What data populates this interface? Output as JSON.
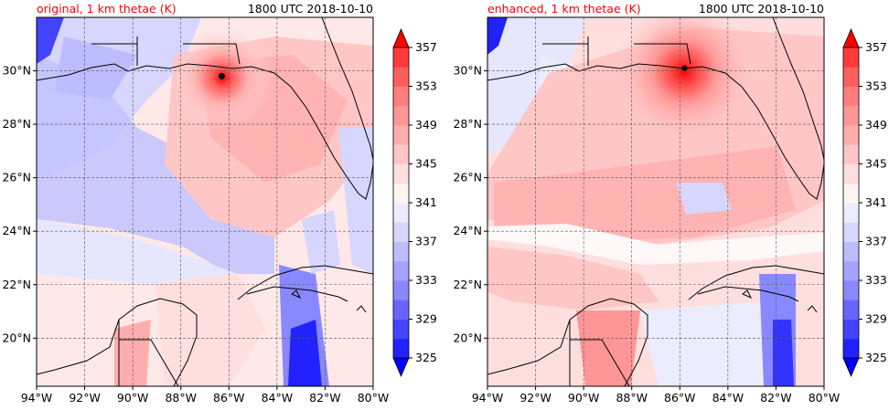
{
  "panels": [
    {
      "title": "original, 1 km thetae (K)",
      "time": "1800 UTC 2018-10-10",
      "storm_center": {
        "lon": -86.3,
        "lat": 29.8
      }
    },
    {
      "title": "enhanced, 1 km thetae (K)",
      "time": "1800 UTC 2018-10-10",
      "storm_center": {
        "lon": -85.8,
        "lat": 30.1
      }
    }
  ],
  "map": {
    "lon_range": [
      -94,
      -80
    ],
    "lat_range": [
      18.2,
      32
    ]
  },
  "lon_ticks": [
    {
      "value": -94,
      "label": "94°W"
    },
    {
      "value": -92,
      "label": "92°W"
    },
    {
      "value": -90,
      "label": "90°W"
    },
    {
      "value": -88,
      "label": "88°W"
    },
    {
      "value": -86,
      "label": "86°W"
    },
    {
      "value": -84,
      "label": "84°W"
    },
    {
      "value": -82,
      "label": "82°W"
    },
    {
      "value": -80,
      "label": "80°W"
    }
  ],
  "lat_ticks": [
    {
      "value": 20,
      "label": "20°N"
    },
    {
      "value": 22,
      "label": "22°N"
    },
    {
      "value": 24,
      "label": "24°N"
    },
    {
      "value": 26,
      "label": "26°N"
    },
    {
      "value": 28,
      "label": "28°N"
    },
    {
      "value": 30,
      "label": "30°N"
    }
  ],
  "colorbar": {
    "levels": [
      325,
      327,
      329,
      331,
      333,
      335,
      337,
      339,
      341,
      343,
      345,
      347,
      349,
      351,
      353,
      355,
      357
    ],
    "tick_labels": [
      "325",
      "329",
      "333",
      "337",
      "341",
      "345",
      "349",
      "353",
      "357"
    ],
    "colors": [
      "#0000ff",
      "#2222ff",
      "#4444ff",
      "#6666ff",
      "#8888ff",
      "#a4a4ff",
      "#bcbcff",
      "#d6d6ff",
      "#ececff",
      "#fff4f4",
      "#ffdede",
      "#ffc6c6",
      "#ffaeae",
      "#ff9696",
      "#ff7e7e",
      "#ff5e5e",
      "#ff3a3a",
      "#ff0000"
    ],
    "colors_note": "blue-white-red diverging"
  },
  "colors": {
    "title": "#ff0000",
    "coast": "#000000",
    "grid": "#555555"
  }
}
